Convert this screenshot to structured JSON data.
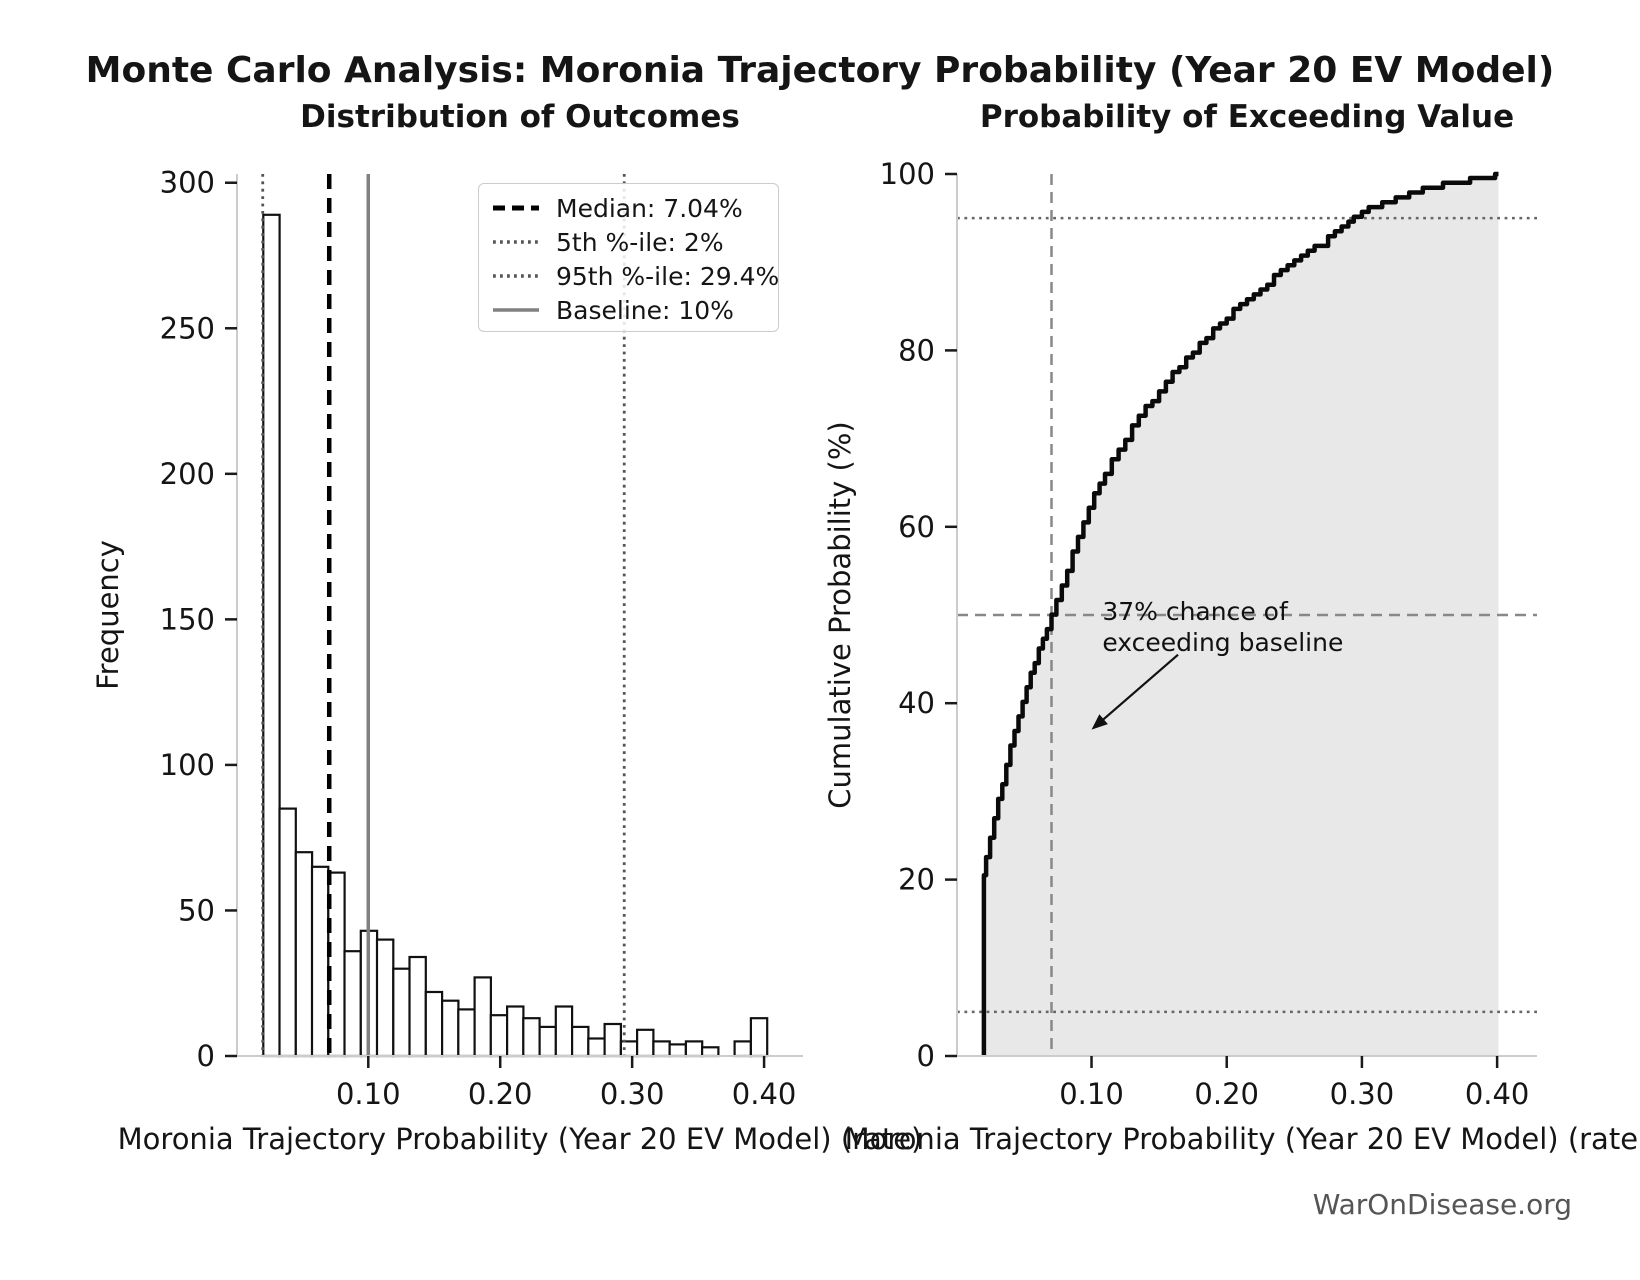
{
  "page": {
    "title": "Monte Carlo Analysis: Moronia Trajectory Probability (Year 20 EV Model)",
    "watermark": "WarOnDisease.org"
  },
  "colors": {
    "bar_fill": "#ffffff",
    "bar_edge": "#111111",
    "curve": "#0a0a0a",
    "area_fill": "#e8e8e8",
    "spine": "#cccccc",
    "tick": "#1a1a1a",
    "baseline_gray": "#808080",
    "dotted_gray": "#555555",
    "dashed_gray": "#888888",
    "watermark": "#555555"
  },
  "chart_data": [
    {
      "type": "bar",
      "title": "Distribution of Outcomes",
      "xlabel": "Moronia Trajectory Probability (Year 20 EV Model) (rate)",
      "ylabel": "Frequency",
      "xlim": [
        0.0005,
        0.4295
      ],
      "ylim": [
        0,
        303
      ],
      "xticks": {
        "values": [
          0.1,
          0.2,
          0.3,
          0.4
        ],
        "labels": [
          "0.10",
          "0.20",
          "0.30",
          "0.40"
        ]
      },
      "yticks": {
        "values": [
          0,
          50,
          100,
          150,
          200,
          250,
          300
        ],
        "labels": [
          "0",
          "50",
          "100",
          "150",
          "200",
          "250",
          "300"
        ]
      },
      "bins": {
        "start": 0.0204,
        "width": 0.01232
      },
      "frequencies": [
        289,
        85,
        70,
        65,
        63,
        36,
        43,
        40,
        30,
        34,
        22,
        19,
        16,
        27,
        14,
        17,
        13,
        10,
        17,
        10,
        6,
        11,
        5,
        9,
        5,
        4,
        5,
        3,
        0,
        5,
        13
      ],
      "ref_lines": [
        {
          "label": "Median: 7.04%",
          "value": 0.0704,
          "style": "dashed",
          "color": "#000000",
          "width": 4.5
        },
        {
          "label": "5th %-ile: 2%",
          "value": 0.02,
          "style": "dotted",
          "color": "#555555",
          "width": 2.8
        },
        {
          "label": "95th %-ile: 29.4%",
          "value": 0.294,
          "style": "dotted",
          "color": "#555555",
          "width": 2.8
        },
        {
          "label": "Baseline: 10%",
          "value": 0.1,
          "style": "solid",
          "color": "#808080",
          "width": 3.5
        }
      ]
    },
    {
      "type": "line",
      "title": "Probability of Exceeding Value",
      "xlabel": "Moronia Trajectory Probability (Year 20 EV Model) (rate)",
      "ylabel": "Cumulative Probability (%)",
      "xlim": [
        0.0005,
        0.4295
      ],
      "ylim": [
        0,
        100
      ],
      "xticks": {
        "values": [
          0.1,
          0.2,
          0.3,
          0.4
        ],
        "labels": [
          "0.10",
          "0.20",
          "0.30",
          "0.40"
        ]
      },
      "yticks": {
        "values": [
          0,
          20,
          40,
          60,
          80,
          100
        ],
        "labels": [
          "0",
          "20",
          "40",
          "60",
          "80",
          "100"
        ]
      },
      "curve": [
        [
          0.0204,
          0
        ],
        [
          0.0204,
          20.5
        ],
        [
          0.022,
          22.3
        ],
        [
          0.025,
          24.6
        ],
        [
          0.028,
          26.8
        ],
        [
          0.031,
          28.9
        ],
        [
          0.034,
          31.0
        ],
        [
          0.037,
          33.0
        ],
        [
          0.04,
          35.0
        ],
        [
          0.043,
          36.8
        ],
        [
          0.046,
          38.5
        ],
        [
          0.049,
          40.2
        ],
        [
          0.052,
          41.9
        ],
        [
          0.055,
          43.4
        ],
        [
          0.058,
          44.8
        ],
        [
          0.061,
          46.1
        ],
        [
          0.064,
          47.3
        ],
        [
          0.067,
          48.5
        ],
        [
          0.0704,
          50.0
        ],
        [
          0.074,
          51.6
        ],
        [
          0.078,
          53.4
        ],
        [
          0.082,
          55.2
        ],
        [
          0.086,
          57.0
        ],
        [
          0.09,
          58.7
        ],
        [
          0.094,
          60.3
        ],
        [
          0.098,
          62.0
        ],
        [
          0.102,
          63.6
        ],
        [
          0.106,
          64.9
        ],
        [
          0.11,
          66.1
        ],
        [
          0.115,
          67.5
        ],
        [
          0.12,
          68.8
        ],
        [
          0.125,
          70.1
        ],
        [
          0.13,
          71.3
        ],
        [
          0.135,
          72.4
        ],
        [
          0.14,
          73.5
        ],
        [
          0.145,
          74.5
        ],
        [
          0.15,
          75.5
        ],
        [
          0.155,
          76.5
        ],
        [
          0.16,
          77.4
        ],
        [
          0.165,
          78.3
        ],
        [
          0.17,
          79.2
        ],
        [
          0.175,
          80.0
        ],
        [
          0.18,
          80.8
        ],
        [
          0.185,
          81.6
        ],
        [
          0.19,
          82.4
        ],
        [
          0.195,
          83.1
        ],
        [
          0.2,
          83.8
        ],
        [
          0.205,
          84.5
        ],
        [
          0.21,
          85.2
        ],
        [
          0.215,
          85.9
        ],
        [
          0.22,
          86.5
        ],
        [
          0.225,
          87.1
        ],
        [
          0.23,
          87.7
        ],
        [
          0.235,
          88.3
        ],
        [
          0.24,
          88.9
        ],
        [
          0.245,
          89.5
        ],
        [
          0.25,
          90.1
        ],
        [
          0.255,
          90.6
        ],
        [
          0.26,
          91.1
        ],
        [
          0.265,
          91.6
        ],
        [
          0.27,
          92.1
        ],
        [
          0.275,
          92.7
        ],
        [
          0.28,
          93.3
        ],
        [
          0.285,
          93.9
        ],
        [
          0.29,
          94.6
        ],
        [
          0.294,
          95.0
        ],
        [
          0.3,
          95.6
        ],
        [
          0.305,
          96.0
        ],
        [
          0.31,
          96.4
        ],
        [
          0.315,
          96.7
        ],
        [
          0.32,
          97.0
        ],
        [
          0.325,
          97.3
        ],
        [
          0.33,
          97.6
        ],
        [
          0.335,
          97.8
        ],
        [
          0.34,
          98.0
        ],
        [
          0.345,
          98.2
        ],
        [
          0.35,
          98.4
        ],
        [
          0.355,
          98.6
        ],
        [
          0.36,
          98.8
        ],
        [
          0.365,
          99.0
        ],
        [
          0.37,
          99.1
        ],
        [
          0.375,
          99.2
        ],
        [
          0.38,
          99.4
        ],
        [
          0.385,
          99.5
        ],
        [
          0.39,
          99.6
        ],
        [
          0.394,
          99.7
        ],
        [
          0.3975,
          99.8
        ],
        [
          0.3985,
          100.0
        ],
        [
          0.401,
          100.0
        ]
      ],
      "h_lines": [
        {
          "value": 50,
          "style": "dashed",
          "color": "#888888",
          "width": 2.5
        },
        {
          "value": 95,
          "style": "dotted",
          "color": "#666666",
          "width": 2.5
        },
        {
          "value": 5,
          "style": "dotted",
          "color": "#666666",
          "width": 2.5
        }
      ],
      "v_lines": [
        {
          "value": 0.0704,
          "style": "dashed",
          "color": "#888888",
          "width": 2.5
        }
      ],
      "annotation": {
        "lines": [
          "37% chance of",
          "exceeding baseline"
        ],
        "text_pos": [
          0.108,
          52.2
        ],
        "arrow_from": [
          0.164,
          45.5
        ],
        "arrow_to": [
          0.1,
          37.0
        ]
      }
    }
  ]
}
